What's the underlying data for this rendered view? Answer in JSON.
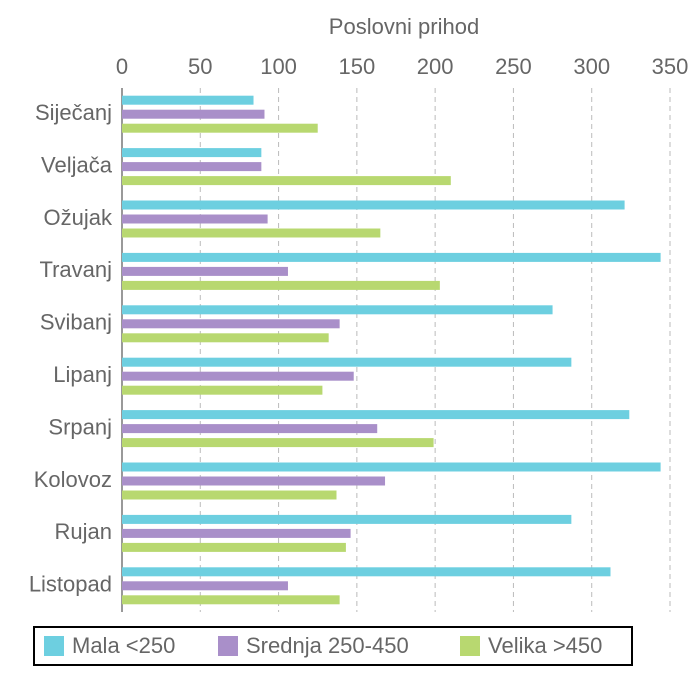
{
  "chart_data": {
    "type": "hbar",
    "title": "Poslovni prihod",
    "categories": [
      "Siječanj",
      "Veljača",
      "Ožujak",
      "Travanj",
      "Svibanj",
      "Lipanj",
      "Srpanj",
      "Kolovoz",
      "Rujan",
      "Listopad"
    ],
    "series": [
      {
        "name": "Mala <250",
        "color": "#6dcfe0",
        "values": [
          84,
          89,
          321,
          344,
          275,
          287,
          324,
          344,
          287,
          312
        ]
      },
      {
        "name": "Srednja 250-450",
        "color": "#a98fc9",
        "values": [
          91,
          89,
          93,
          106,
          139,
          148,
          163,
          168,
          146,
          106
        ]
      },
      {
        "name": "Velika >450",
        "color": "#b8d870",
        "values": [
          125,
          210,
          165,
          203,
          132,
          128,
          199,
          137,
          143,
          139
        ]
      }
    ],
    "xlim": [
      0,
      350
    ],
    "xticks": [
      0,
      50,
      100,
      150,
      200,
      250,
      300,
      350
    ],
    "grid": true,
    "legend": "bottom"
  }
}
